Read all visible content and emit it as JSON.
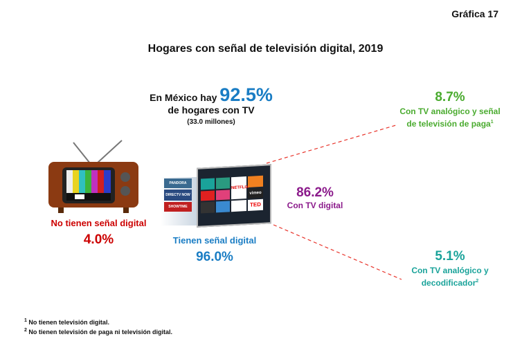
{
  "figure_label": "Gráfica 17",
  "title": "Hogares con señal de televisión digital, 2019",
  "header": {
    "prefix": "En México hay",
    "value": "92.5%",
    "line2": "de hogares con TV",
    "sub": "(33.0 millones)"
  },
  "no_signal": {
    "label": "No tienen señal digital",
    "value": "4.0%"
  },
  "with_signal": {
    "label": "Tienen señal digital",
    "value": "96.0%"
  },
  "digital": {
    "value": "86.2%",
    "label": "Con TV digital"
  },
  "analog_pay": {
    "value": "8.7%",
    "label": "Con TV analógico y señal de televisión de paga",
    "sup": "1"
  },
  "analog_decoder": {
    "value": "5.1%",
    "label": "Con TV analógico y decodificador",
    "sup": "2"
  },
  "tv_apps": [
    "PANDORA",
    "DIRECTV NOW",
    "NETFLIX",
    "vimeo",
    "SHOWTIME",
    "TED"
  ],
  "notes": [
    {
      "sup": "1",
      "text": "No tienen televisión digital."
    },
    {
      "sup": "2",
      "text": "No tienen televisión de paga ni televisión digital."
    }
  ],
  "colors": {
    "blue": "#1a7dc4",
    "purple": "#8b1a8b",
    "green": "#4aab2f",
    "teal": "#1aa39a",
    "red": "#cc0000"
  }
}
